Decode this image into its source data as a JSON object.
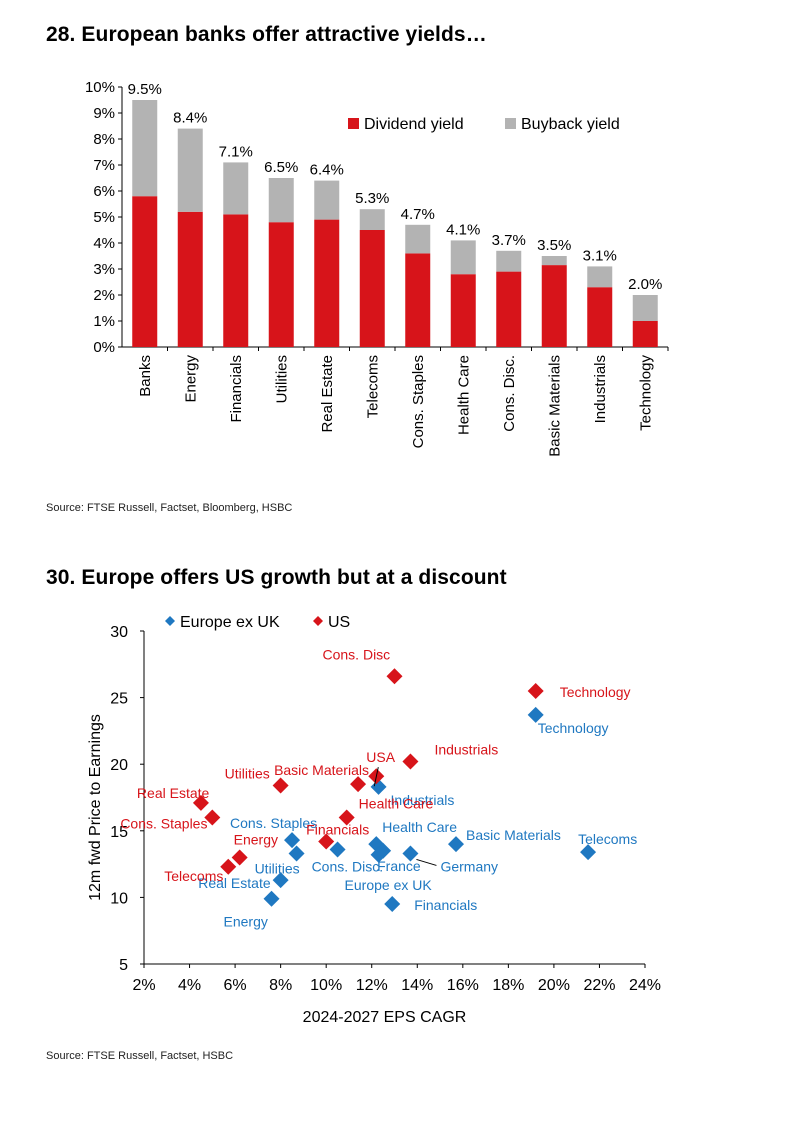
{
  "chart1_title": "28. European banks offer attractive yields…",
  "chart1_source": "Source: FTSE Russell, Factset, Bloomberg, HSBC",
  "chart2_title": "30. Europe offers US growth but at a discount",
  "chart2_source": "Source: FTSE Russell, Factset, HSBC",
  "colors": {
    "red": "#d7141a",
    "grey": "#b3b3b3",
    "blue": "#1f78c1"
  },
  "chart_data": [
    {
      "type": "bar",
      "stacked": true,
      "categories": [
        "Banks",
        "Energy",
        "Financials",
        "Utilities",
        "Real Estate",
        "Telecoms",
        "Cons. Staples",
        "Health Care",
        "Cons. Disc.",
        "Basic Materials",
        "Industrials",
        "Technology"
      ],
      "series": [
        {
          "name": "Dividend yield",
          "color": "#d7141a",
          "values": [
            5.8,
            5.2,
            5.1,
            4.8,
            4.9,
            4.5,
            3.6,
            2.8,
            2.9,
            3.15,
            2.3,
            1.0
          ]
        },
        {
          "name": "Buyback yield",
          "color": "#b3b3b3",
          "values": [
            3.7,
            3.2,
            2.0,
            1.7,
            1.5,
            0.8,
            1.1,
            1.3,
            0.8,
            0.35,
            0.8,
            1.0
          ]
        }
      ],
      "total_labels": [
        "9.5%",
        "8.4%",
        "7.1%",
        "6.5%",
        "6.4%",
        "5.3%",
        "4.7%",
        "4.1%",
        "3.7%",
        "3.5%",
        "3.1%",
        "2.0%"
      ],
      "ylim": [
        0,
        10
      ],
      "yticks": [
        "0%",
        "1%",
        "2%",
        "3%",
        "4%",
        "5%",
        "6%",
        "7%",
        "8%",
        "9%",
        "10%"
      ],
      "legend": "top-right"
    },
    {
      "type": "scatter",
      "xlabel": "2024-2027 EPS CAGR",
      "ylabel": "12m fwd Price to Earnings",
      "xlim": [
        2,
        24
      ],
      "ylim": [
        5,
        30
      ],
      "xticks": [
        "2%",
        "4%",
        "6%",
        "8%",
        "10%",
        "12%",
        "14%",
        "16%",
        "18%",
        "20%",
        "22%",
        "24%"
      ],
      "yticks": [
        "5",
        "10",
        "15",
        "20",
        "25",
        "30"
      ],
      "legend": "top-left",
      "series": [
        {
          "name": "Europe ex UK",
          "color": "#1f78c1",
          "points": [
            {
              "label": "Technology",
              "x": 19.2,
              "y": 23.7
            },
            {
              "label": "Industrials",
              "x": 12.3,
              "y": 18.3
            },
            {
              "label": "Cons. Staples",
              "x": 8.5,
              "y": 14.3
            },
            {
              "label": "Basic Materials",
              "x": 15.7,
              "y": 14.0
            },
            {
              "label": "Telecoms",
              "x": 21.5,
              "y": 13.4
            },
            {
              "label": "Health Care",
              "x": 12.2,
              "y": 14.0
            },
            {
              "label": "Cons. Disc.",
              "x": 10.5,
              "y": 13.6
            },
            {
              "label": "France",
              "x": 12.5,
              "y": 13.5
            },
            {
              "label": "Europe ex UK",
              "x": 12.3,
              "y": 13.2
            },
            {
              "label": "Germany",
              "x": 13.7,
              "y": 13.3
            },
            {
              "label": "Utilities",
              "x": 8.7,
              "y": 13.3
            },
            {
              "label": "Real Estate",
              "x": 8.0,
              "y": 11.3
            },
            {
              "label": "Energy",
              "x": 7.6,
              "y": 9.9
            },
            {
              "label": "Financials",
              "x": 12.9,
              "y": 9.5
            }
          ]
        },
        {
          "name": "US",
          "color": "#d7141a",
          "points": [
            {
              "label": "Cons. Disc",
              "x": 13.0,
              "y": 26.6
            },
            {
              "label": "Technology",
              "x": 19.2,
              "y": 25.5
            },
            {
              "label": "Industrials",
              "x": 13.7,
              "y": 20.2
            },
            {
              "label": "USA",
              "x": 12.2,
              "y": 19.1
            },
            {
              "label": "Basic Materials",
              "x": 11.4,
              "y": 18.5
            },
            {
              "label": "Utilities",
              "x": 8.0,
              "y": 18.4
            },
            {
              "label": "Real Estate",
              "x": 4.5,
              "y": 17.1
            },
            {
              "label": "Health Care",
              "x": 10.9,
              "y": 16.0
            },
            {
              "label": "Cons. Staples",
              "x": 5.0,
              "y": 16.0
            },
            {
              "label": "Financials",
              "x": 10.0,
              "y": 14.2
            },
            {
              "label": "Energy",
              "x": 6.2,
              "y": 13.0
            },
            {
              "label": "Telecoms",
              "x": 5.7,
              "y": 12.3
            }
          ]
        }
      ]
    }
  ]
}
